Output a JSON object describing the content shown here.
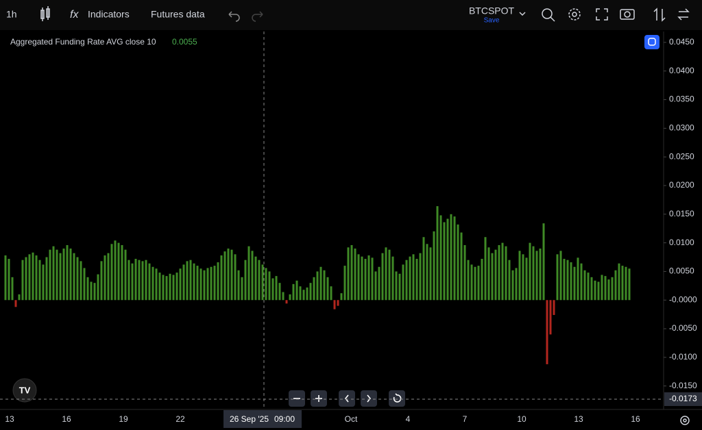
{
  "toolbar": {
    "interval": "1h",
    "indicators": "Indicators",
    "futures": "Futures data",
    "symbol": "BTCSPOT",
    "save": "Save"
  },
  "chart_data": {
    "type": "bar",
    "title": "Aggregated Funding Rate AVG close 10",
    "last_value_label": "0.0055",
    "colors": {
      "positive": "#3f8a26",
      "negative": "#b3261e"
    },
    "values": [
      0.0078,
      0.0072,
      0.004,
      -0.0012,
      0.001,
      0.007,
      0.0075,
      0.008,
      0.0083,
      0.0078,
      0.007,
      0.0062,
      0.0075,
      0.0088,
      0.0094,
      0.0088,
      0.0082,
      0.009,
      0.0096,
      0.009,
      0.0082,
      0.0075,
      0.0068,
      0.0056,
      0.004,
      0.0032,
      0.003,
      0.0045,
      0.0068,
      0.0078,
      0.0082,
      0.0098,
      0.0104,
      0.01,
      0.0096,
      0.0088,
      0.007,
      0.0064,
      0.0072,
      0.007,
      0.0068,
      0.007,
      0.0064,
      0.0058,
      0.0055,
      0.0048,
      0.0044,
      0.0042,
      0.0046,
      0.0044,
      0.0048,
      0.0055,
      0.0062,
      0.0068,
      0.007,
      0.0064,
      0.006,
      0.0055,
      0.0052,
      0.0056,
      0.0058,
      0.006,
      0.0066,
      0.0078,
      0.0085,
      0.009,
      0.0088,
      0.008,
      0.0052,
      0.004,
      0.007,
      0.0094,
      0.0086,
      0.0076,
      0.007,
      0.0062,
      0.0056,
      0.005,
      0.0038,
      0.0042,
      0.003,
      0.0014,
      -0.0006,
      0.001,
      0.0028,
      0.0034,
      0.0024,
      0.0018,
      0.0022,
      0.003,
      0.004,
      0.005,
      0.0058,
      0.0052,
      0.004,
      0.0024,
      -0.0016,
      -0.001,
      0.0012,
      0.006,
      0.0092,
      0.0096,
      0.009,
      0.008,
      0.0076,
      0.0072,
      0.0078,
      0.0074,
      0.005,
      0.0058,
      0.0082,
      0.0092,
      0.0088,
      0.0076,
      0.005,
      0.0046,
      0.0062,
      0.007,
      0.0076,
      0.008,
      0.0072,
      0.0082,
      0.011,
      0.0098,
      0.0092,
      0.012,
      0.0164,
      0.0148,
      0.0136,
      0.0142,
      0.015,
      0.0146,
      0.0132,
      0.0118,
      0.0096,
      0.007,
      0.0062,
      0.0058,
      0.006,
      0.0072,
      0.011,
      0.0092,
      0.0082,
      0.0088,
      0.0096,
      0.01,
      0.0094,
      0.007,
      0.0052,
      0.0056,
      0.0086,
      0.008,
      0.0074,
      0.01,
      0.0094,
      0.0086,
      0.009,
      0.0134,
      -0.0112,
      -0.006,
      -0.0026,
      0.008,
      0.0086,
      0.0072,
      0.007,
      0.0066,
      0.0058,
      0.0074,
      0.0064,
      0.0052,
      0.0048,
      0.004,
      0.0034,
      0.0032,
      0.0044,
      0.0042,
      0.0036,
      0.004,
      0.0052,
      0.0064,
      0.006,
      0.0058,
      0.0055
    ],
    "ylim": [
      -0.0191,
      0.0469
    ],
    "yticks": [
      {
        "value": 0.045,
        "label": "0.0450"
      },
      {
        "value": 0.04,
        "label": "0.0400"
      },
      {
        "value": 0.035,
        "label": "0.0350"
      },
      {
        "value": 0.03,
        "label": "0.0300"
      },
      {
        "value": 0.025,
        "label": "0.0250"
      },
      {
        "value": 0.02,
        "label": "0.0200"
      },
      {
        "value": 0.015,
        "label": "0.0150"
      },
      {
        "value": 0.01,
        "label": "0.0100"
      },
      {
        "value": 0.005,
        "label": "0.0050"
      },
      {
        "value": 0,
        "label": "-0.0000"
      },
      {
        "value": -0.005,
        "label": "-0.0050"
      },
      {
        "value": -0.01,
        "label": "-0.0100"
      },
      {
        "value": -0.015,
        "label": "-0.0150"
      }
    ],
    "xticks": [
      "13",
      "16",
      "19",
      "22",
      null,
      null,
      "Oct",
      "4",
      "7",
      "10",
      "13",
      "16"
    ],
    "crosshair": {
      "value": -0.0173,
      "label": "-0.0173",
      "date": "26 Sep '25",
      "time": "09:00"
    }
  }
}
